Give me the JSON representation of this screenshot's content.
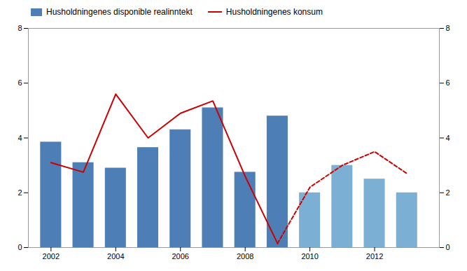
{
  "chart_data": {
    "type": "bar",
    "xlim": [
      2001.3,
      2014.0
    ],
    "xticks": [
      2002,
      2004,
      2006,
      2008,
      2010,
      2012
    ],
    "ylim": [
      0,
      8
    ],
    "yticks": [
      0,
      2,
      4,
      6,
      8
    ],
    "y2lim": [
      0,
      8
    ],
    "y2ticks": [
      0,
      2,
      4,
      6,
      8
    ],
    "grid": false,
    "legend": "upper left",
    "series": [
      {
        "name": "Husholdningenes disponible realinntekt",
        "type": "bar",
        "color": "#4d7eb5",
        "x": [
          2002,
          2003,
          2004,
          2005,
          2006,
          2007,
          2008,
          2009
        ],
        "values": [
          3.85,
          3.1,
          2.9,
          3.65,
          4.3,
          5.1,
          2.75,
          4.8
        ]
      },
      {
        "type": "bar",
        "color": "#7bafd4",
        "x": [
          2010,
          2011,
          2012,
          2013
        ],
        "values": [
          2.0,
          3.0,
          2.5,
          2.0
        ]
      },
      {
        "name": "Husholdningenes konsum",
        "type": "line",
        "color": "#cc0000",
        "line_style": "solid",
        "x": [
          2002,
          2003,
          2004,
          2005,
          2006,
          2007,
          2008,
          2009
        ],
        "values": [
          3.1,
          2.75,
          5.6,
          4.0,
          4.9,
          5.35,
          2.6,
          0.15
        ]
      },
      {
        "type": "line",
        "color": "#cc0000",
        "line_style": "dashed",
        "x": [
          2009,
          2010,
          2011,
          2012,
          2013
        ],
        "values": [
          0.15,
          2.2,
          3.0,
          3.5,
          2.7
        ]
      }
    ]
  }
}
